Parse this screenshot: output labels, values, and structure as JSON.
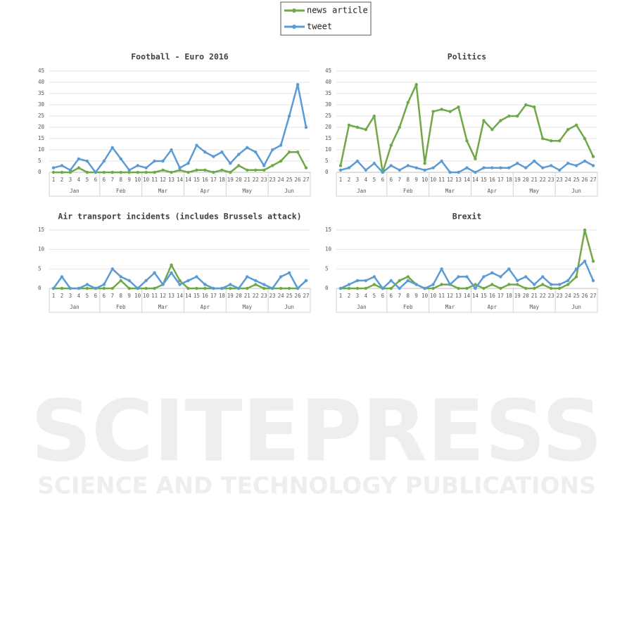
{
  "legend": [
    {
      "name": "news article",
      "color": "#70a846"
    },
    {
      "name": "tweet",
      "color": "#5b9bd5"
    }
  ],
  "x_axis": {
    "categories": [
      1,
      2,
      3,
      4,
      5,
      6,
      6,
      7,
      8,
      9,
      10,
      10,
      11,
      12,
      13,
      14,
      14,
      15,
      16,
      17,
      18,
      19,
      20,
      21,
      22,
      23,
      23,
      24,
      25,
      26,
      27
    ],
    "months": [
      "Jan",
      "Feb",
      "Mar",
      "Apr",
      "May",
      "Jun"
    ],
    "month_sizes": [
      6,
      5,
      5,
      5,
      5,
      5
    ]
  },
  "chart_data": [
    {
      "type": "line",
      "title": "Football - Euro 2016",
      "ylim": [
        0,
        45
      ],
      "yticks": [
        0,
        5,
        10,
        15,
        20,
        25,
        30,
        35,
        40,
        45
      ],
      "grid": true,
      "series": [
        {
          "values": [
            0,
            0,
            0,
            2,
            0,
            0,
            0,
            0,
            0,
            0,
            0,
            0,
            0,
            1,
            0,
            1,
            0,
            1,
            1,
            0,
            1,
            0,
            3,
            1,
            1,
            1,
            3,
            5,
            9,
            9,
            2
          ]
        },
        {
          "values": [
            2,
            3,
            1,
            6,
            5,
            0,
            5,
            11,
            6,
            1,
            3,
            2,
            5,
            5,
            10,
            2,
            4,
            12,
            9,
            7,
            9,
            4,
            8,
            11,
            9,
            3,
            10,
            12,
            25,
            39,
            20
          ]
        }
      ]
    },
    {
      "type": "line",
      "title": "Politics",
      "ylim": [
        0,
        45
      ],
      "yticks": [
        0,
        5,
        10,
        15,
        20,
        25,
        30,
        35,
        40,
        45
      ],
      "grid": true,
      "series": [
        {
          "values": [
            3,
            21,
            20,
            19,
            25,
            0,
            12,
            20,
            31,
            39,
            4,
            27,
            28,
            27,
            29,
            14,
            6,
            23,
            19,
            23,
            25,
            25,
            30,
            29,
            15,
            14,
            14,
            19,
            21,
            15,
            7
          ]
        },
        {
          "values": [
            1,
            2,
            5,
            1,
            4,
            0,
            3,
            1,
            3,
            2,
            1,
            2,
            5,
            0,
            0,
            2,
            0,
            2,
            2,
            2,
            2,
            4,
            2,
            5,
            2,
            3,
            1,
            4,
            3,
            5,
            3
          ]
        }
      ]
    },
    {
      "type": "line",
      "title": "Air transport incidents (includes Brussels attack)",
      "ylim": [
        0,
        15
      ],
      "yticks": [
        0,
        5,
        10,
        15
      ],
      "grid": true,
      "series": [
        {
          "values": [
            0,
            0,
            0,
            0,
            0,
            0,
            0,
            0,
            2,
            0,
            0,
            0,
            0,
            1,
            6,
            2,
            0,
            0,
            0,
            0,
            0,
            0,
            0,
            0,
            1,
            0,
            0,
            0,
            0,
            0,
            2
          ]
        },
        {
          "values": [
            0,
            3,
            0,
            0,
            1,
            0,
            1,
            5,
            3,
            2,
            0,
            2,
            4,
            1,
            4,
            1,
            2,
            3,
            1,
            0,
            0,
            1,
            0,
            3,
            2,
            1,
            0,
            3,
            4,
            0,
            2
          ]
        }
      ]
    },
    {
      "type": "line",
      "title": "Brexit",
      "ylim": [
        0,
        15
      ],
      "yticks": [
        0,
        5,
        10,
        15
      ],
      "grid": true,
      "series": [
        {
          "values": [
            0,
            0,
            0,
            0,
            1,
            0,
            0,
            2,
            3,
            1,
            0,
            0,
            1,
            1,
            0,
            0,
            1,
            0,
            1,
            0,
            1,
            1,
            0,
            0,
            1,
            0,
            0,
            1,
            3,
            15,
            7
          ]
        },
        {
          "values": [
            0,
            1,
            2,
            2,
            3,
            0,
            2,
            0,
            2,
            1,
            0,
            1,
            5,
            1,
            3,
            3,
            0,
            3,
            4,
            3,
            5,
            2,
            3,
            1,
            3,
            1,
            1,
            2,
            5,
            7,
            2
          ]
        }
      ]
    }
  ],
  "watermark": {
    "title": "SCITEPRESS",
    "subtitle": "SCIENCE AND TECHNOLOGY PUBLICATIONS"
  }
}
